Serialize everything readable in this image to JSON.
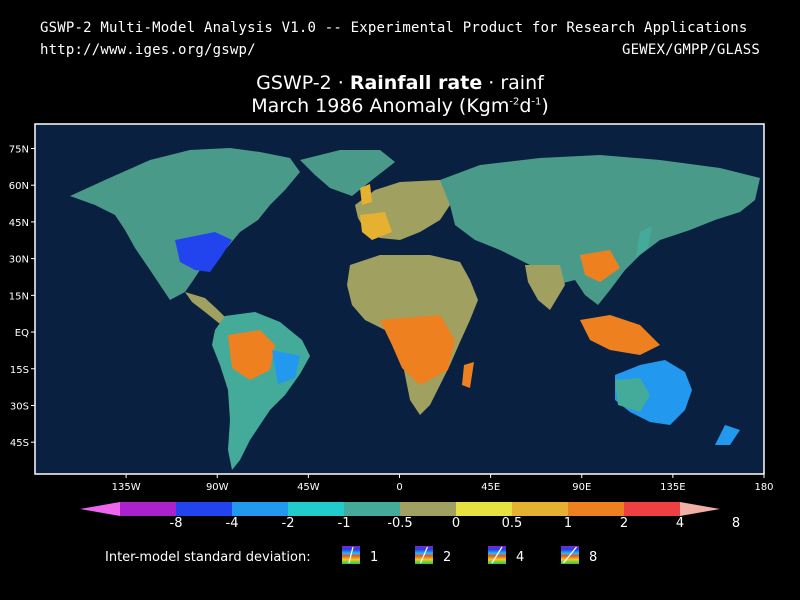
{
  "header": {
    "title": "GSWP-2 Multi-Model Analysis V1.0 -- Experimental Product for Research Applications",
    "url": "http://www.iges.org/gswp/",
    "org": "GEWEX/GMPP/GLASS"
  },
  "map_title": {
    "prefix": "GSWP-2 · ",
    "variable": "Rainfall rate",
    "suffix": " · rainf",
    "line2": "March 1986 Anomaly (Kgm",
    "exp1": "-2",
    "mid": "d",
    "exp2": "-1",
    "close": ")"
  },
  "map": {
    "lat_labels": [
      "75N",
      "60N",
      "45N",
      "30N",
      "15N",
      "EQ",
      "15S",
      "30S",
      "45S"
    ],
    "lat_values": [
      75,
      60,
      45,
      30,
      15,
      0,
      -15,
      -30,
      -45
    ],
    "lon_labels": [
      "135W",
      "90W",
      "45W",
      "0",
      "45E",
      "90E",
      "135E",
      "180"
    ],
    "lon_values": [
      -135,
      -90,
      -45,
      0,
      45,
      90,
      135,
      180
    ],
    "lon_range": [
      -180,
      180
    ],
    "lat_range": [
      -58,
      85
    ],
    "ocean_color": "#0a2040",
    "frame_color": "#ffffff"
  },
  "colorbar": {
    "labels": [
      "-8",
      "-4",
      "-2",
      "-1",
      "-0.5",
      "0",
      "0.5",
      "1",
      "2",
      "4",
      "8"
    ],
    "colors": [
      "#ee66ee",
      "#aa22cc",
      "#2244ee",
      "#2299ee",
      "#22cccc",
      "#44aa99",
      "#a0a060",
      "#e6e040",
      "#e6b030",
      "#ee8020",
      "#ee4040",
      "#f0b0a8"
    ]
  },
  "sd_legend": {
    "label": "Inter-model standard deviation:",
    "values": [
      "1",
      "2",
      "4",
      "8"
    ]
  }
}
